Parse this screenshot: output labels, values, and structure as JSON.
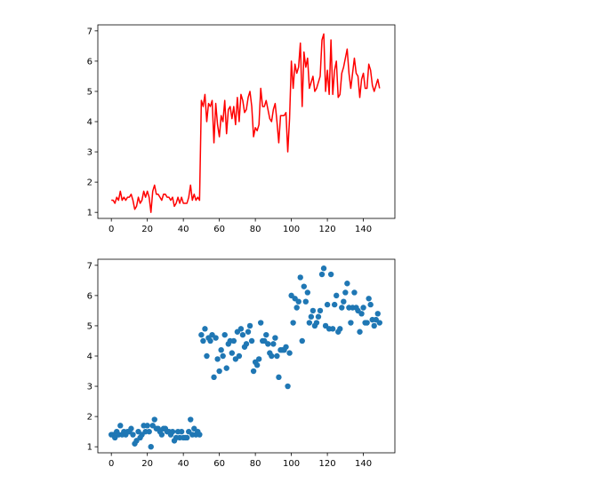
{
  "chart_data": [
    {
      "type": "line",
      "title": "",
      "xlabel": "",
      "ylabel": "",
      "xlim": [
        -7.5,
        157.5
      ],
      "ylim": [
        0.8,
        7.2
      ],
      "xticks": [
        0,
        20,
        40,
        60,
        80,
        100,
        120,
        140
      ],
      "yticks": [
        1,
        2,
        3,
        4,
        5,
        6,
        7
      ],
      "grid": false,
      "color": "#ff0000",
      "x": [
        0,
        1,
        2,
        3,
        4,
        5,
        6,
        7,
        8,
        9,
        10,
        11,
        12,
        13,
        14,
        15,
        16,
        17,
        18,
        19,
        20,
        21,
        22,
        23,
        24,
        25,
        26,
        27,
        28,
        29,
        30,
        31,
        32,
        33,
        34,
        35,
        36,
        37,
        38,
        39,
        40,
        41,
        42,
        43,
        44,
        45,
        46,
        47,
        48,
        49,
        50,
        51,
        52,
        53,
        54,
        55,
        56,
        57,
        58,
        59,
        60,
        61,
        62,
        63,
        64,
        65,
        66,
        67,
        68,
        69,
        70,
        71,
        72,
        73,
        74,
        75,
        76,
        77,
        78,
        79,
        80,
        81,
        82,
        83,
        84,
        85,
        86,
        87,
        88,
        89,
        90,
        91,
        92,
        93,
        94,
        95,
        96,
        97,
        98,
        99,
        100,
        101,
        102,
        103,
        104,
        105,
        106,
        107,
        108,
        109,
        110,
        111,
        112,
        113,
        114,
        115,
        116,
        117,
        118,
        119,
        120,
        121,
        122,
        123,
        124,
        125,
        126,
        127,
        128,
        129,
        130,
        131,
        132,
        133,
        134,
        135,
        136,
        137,
        138,
        139,
        140,
        141,
        142,
        143,
        144,
        145,
        146,
        147,
        148,
        149
      ],
      "y": [
        1.4,
        1.4,
        1.3,
        1.5,
        1.4,
        1.7,
        1.4,
        1.5,
        1.4,
        1.5,
        1.5,
        1.6,
        1.4,
        1.1,
        1.2,
        1.5,
        1.3,
        1.4,
        1.7,
        1.5,
        1.7,
        1.5,
        1.0,
        1.7,
        1.9,
        1.6,
        1.6,
        1.5,
        1.4,
        1.6,
        1.6,
        1.5,
        1.5,
        1.4,
        1.5,
        1.2,
        1.3,
        1.5,
        1.3,
        1.5,
        1.3,
        1.3,
        1.3,
        1.5,
        1.9,
        1.4,
        1.6,
        1.4,
        1.5,
        1.4,
        4.7,
        4.5,
        4.9,
        4.0,
        4.6,
        4.5,
        4.7,
        3.3,
        4.6,
        3.9,
        3.5,
        4.2,
        4.0,
        4.7,
        3.6,
        4.4,
        4.5,
        4.1,
        4.5,
        3.9,
        4.8,
        4.0,
        4.9,
        4.7,
        4.3,
        4.4,
        4.8,
        5.0,
        4.5,
        3.5,
        3.8,
        3.7,
        3.9,
        5.1,
        4.5,
        4.5,
        4.7,
        4.4,
        4.1,
        4.0,
        4.4,
        4.6,
        4.0,
        3.3,
        4.2,
        4.2,
        4.2,
        4.3,
        3.0,
        4.1,
        6.0,
        5.1,
        5.9,
        5.6,
        5.8,
        6.6,
        4.5,
        6.3,
        5.8,
        6.1,
        5.1,
        5.3,
        5.5,
        5.0,
        5.1,
        5.3,
        5.5,
        6.7,
        6.9,
        5.0,
        5.7,
        4.9,
        6.7,
        4.9,
        5.7,
        6.0,
        4.8,
        4.9,
        5.6,
        5.8,
        6.1,
        6.4,
        5.6,
        5.1,
        5.6,
        6.1,
        5.6,
        5.5,
        4.8,
        5.4,
        5.6,
        5.1,
        5.1,
        5.9,
        5.7,
        5.2,
        5.0,
        5.2,
        5.4,
        5.1
      ]
    },
    {
      "type": "scatter",
      "title": "",
      "xlabel": "",
      "ylabel": "",
      "xlim": [
        -7.5,
        157.5
      ],
      "ylim": [
        0.8,
        7.2
      ],
      "xticks": [
        0,
        20,
        40,
        60,
        80,
        100,
        120,
        140
      ],
      "yticks": [
        1,
        2,
        3,
        4,
        5,
        6,
        7
      ],
      "grid": false,
      "color": "#1f77b4",
      "x": [
        0,
        1,
        2,
        3,
        4,
        5,
        6,
        7,
        8,
        9,
        10,
        11,
        12,
        13,
        14,
        15,
        16,
        17,
        18,
        19,
        20,
        21,
        22,
        23,
        24,
        25,
        26,
        27,
        28,
        29,
        30,
        31,
        32,
        33,
        34,
        35,
        36,
        37,
        38,
        39,
        40,
        41,
        42,
        43,
        44,
        45,
        46,
        47,
        48,
        49,
        50,
        51,
        52,
        53,
        54,
        55,
        56,
        57,
        58,
        59,
        60,
        61,
        62,
        63,
        64,
        65,
        66,
        67,
        68,
        69,
        70,
        71,
        72,
        73,
        74,
        75,
        76,
        77,
        78,
        79,
        80,
        81,
        82,
        83,
        84,
        85,
        86,
        87,
        88,
        89,
        90,
        91,
        92,
        93,
        94,
        95,
        96,
        97,
        98,
        99,
        100,
        101,
        102,
        103,
        104,
        105,
        106,
        107,
        108,
        109,
        110,
        111,
        112,
        113,
        114,
        115,
        116,
        117,
        118,
        119,
        120,
        121,
        122,
        123,
        124,
        125,
        126,
        127,
        128,
        129,
        130,
        131,
        132,
        133,
        134,
        135,
        136,
        137,
        138,
        139,
        140,
        141,
        142,
        143,
        144,
        145,
        146,
        147,
        148,
        149
      ],
      "y": [
        1.4,
        1.4,
        1.3,
        1.5,
        1.4,
        1.7,
        1.4,
        1.5,
        1.4,
        1.5,
        1.5,
        1.6,
        1.4,
        1.1,
        1.2,
        1.5,
        1.3,
        1.4,
        1.7,
        1.5,
        1.7,
        1.5,
        1.0,
        1.7,
        1.9,
        1.6,
        1.6,
        1.5,
        1.4,
        1.6,
        1.6,
        1.5,
        1.5,
        1.4,
        1.5,
        1.2,
        1.3,
        1.5,
        1.3,
        1.5,
        1.3,
        1.3,
        1.3,
        1.5,
        1.9,
        1.4,
        1.6,
        1.4,
        1.5,
        1.4,
        4.7,
        4.5,
        4.9,
        4.0,
        4.6,
        4.5,
        4.7,
        3.3,
        4.6,
        3.9,
        3.5,
        4.2,
        4.0,
        4.7,
        3.6,
        4.4,
        4.5,
        4.1,
        4.5,
        3.9,
        4.8,
        4.0,
        4.9,
        4.7,
        4.3,
        4.4,
        4.8,
        5.0,
        4.5,
        3.5,
        3.8,
        3.7,
        3.9,
        5.1,
        4.5,
        4.5,
        4.7,
        4.4,
        4.1,
        4.0,
        4.4,
        4.6,
        4.0,
        3.3,
        4.2,
        4.2,
        4.2,
        4.3,
        3.0,
        4.1,
        6.0,
        5.1,
        5.9,
        5.6,
        5.8,
        6.6,
        4.5,
        6.3,
        5.8,
        6.1,
        5.1,
        5.3,
        5.5,
        5.0,
        5.1,
        5.3,
        5.5,
        6.7,
        6.9,
        5.0,
        5.7,
        4.9,
        6.7,
        4.9,
        5.7,
        6.0,
        4.8,
        4.9,
        5.6,
        5.8,
        6.1,
        6.4,
        5.6,
        5.1,
        5.6,
        6.1,
        5.6,
        5.5,
        4.8,
        5.4,
        5.6,
        5.1,
        5.1,
        5.9,
        5.7,
        5.2,
        5.0,
        5.2,
        5.4,
        5.1
      ]
    }
  ]
}
